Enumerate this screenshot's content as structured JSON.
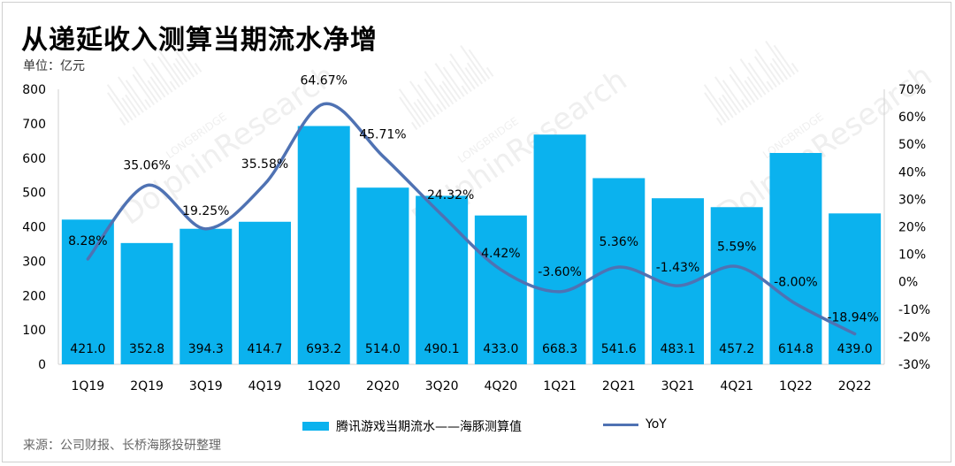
{
  "title": "从递延收入测算当期流水净增",
  "unit": "单位：亿元",
  "source": "来源：公司财报、长桥海豚投研整理",
  "colors": {
    "bar": "#0BB2EE",
    "line": "#4F72B3"
  },
  "chart_data": {
    "type": "bar+line",
    "categories": [
      "1Q19",
      "2Q19",
      "3Q19",
      "4Q19",
      "1Q20",
      "2Q20",
      "3Q20",
      "4Q20",
      "1Q21",
      "2Q21",
      "3Q21",
      "4Q21",
      "1Q22",
      "2Q22"
    ],
    "series": [
      {
        "name": "腾讯游戏当期流水——海豚测算值",
        "type": "bar",
        "axis": "left",
        "values": [
          421.0,
          352.8,
          394.3,
          414.7,
          693.2,
          514.0,
          490.1,
          433.0,
          668.3,
          541.6,
          483.1,
          457.2,
          614.8,
          439.0
        ],
        "labels": [
          "421.0",
          "352.8",
          "394.3",
          "414.7",
          "693.2",
          "514.0",
          "490.1",
          "433.0",
          "668.3",
          "541.6",
          "483.1",
          "457.2",
          "614.8",
          "439.0"
        ]
      },
      {
        "name": "YoY",
        "type": "line",
        "axis": "right",
        "values": [
          8.28,
          35.06,
          19.25,
          35.58,
          64.67,
          45.71,
          24.32,
          4.42,
          -3.6,
          5.36,
          -1.43,
          5.59,
          -8.0,
          -18.94
        ],
        "labels": [
          "8.28%",
          "35.06%",
          "19.25%",
          "35.58%",
          "64.67%",
          "45.71%",
          "24.32%",
          "4.42%",
          "-3.60%",
          "5.36%",
          "-1.43%",
          "5.59%",
          "-8.00%",
          "-18.94%"
        ]
      }
    ],
    "y_left": {
      "min": 0,
      "max": 800,
      "step": 100
    },
    "y_right": {
      "min": -30,
      "max": 70,
      "step": 10,
      "suffix": "%"
    },
    "grid": false,
    "legend_position": "bottom"
  }
}
